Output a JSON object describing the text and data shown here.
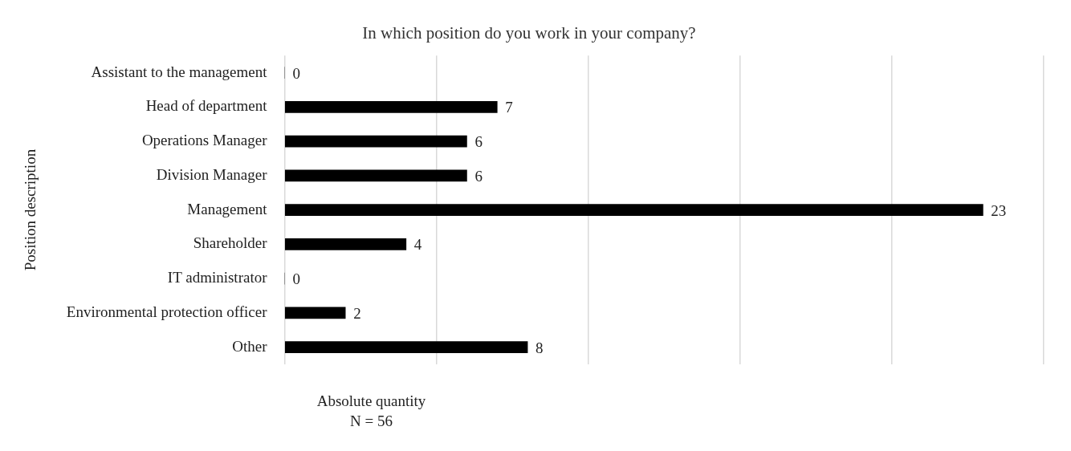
{
  "chart_data": {
    "type": "bar",
    "orientation": "horizontal",
    "title": "In which position do you work in your company?",
    "xlabel": "Absolute quantity",
    "ylabel": "Position description",
    "categories": [
      "Assistant to the management",
      "Head of department",
      "Operations Manager",
      "Division Manager",
      "Management",
      "Shareholder",
      "IT administrator",
      "Environmental protection officer",
      "Other"
    ],
    "values": [
      0,
      7,
      6,
      6,
      23,
      4,
      0,
      2,
      8
    ],
    "color": "#000000",
    "data_labels": true,
    "xlim": [
      0,
      25
    ],
    "xticks": [
      {
        "value": 0,
        "label": null
      },
      {
        "value": 5,
        "label": null
      },
      {
        "value": 10,
        "label": null
      },
      {
        "value": 15,
        "label": null
      },
      {
        "value": 20,
        "label": null
      },
      {
        "value": 25,
        "label": null
      }
    ],
    "grid": "x",
    "tick_labels": "y",
    "legend": false,
    "annotations": [
      "N = 56"
    ]
  }
}
